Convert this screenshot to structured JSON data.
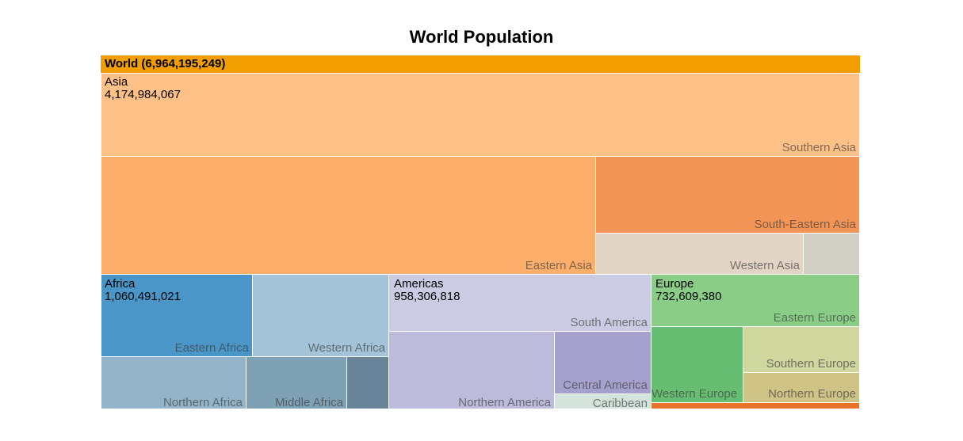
{
  "chart_data": {
    "type": "treemap",
    "title": "World Population",
    "root": {
      "name": "World",
      "value": "6,964,195,249"
    },
    "regions": [
      {
        "name": "Asia",
        "value": "4,174,984,067",
        "children": [
          {
            "name": "Southern Asia",
            "color": "#fdc086"
          },
          {
            "name": "Eastern Asia",
            "color": "#fdae6b"
          },
          {
            "name": "South-Eastern Asia",
            "color": "#f29556"
          },
          {
            "name": "Western Asia",
            "color": "#e3d5c6"
          },
          {
            "name": "",
            "color": "#cfcfc3"
          }
        ]
      },
      {
        "name": "Africa",
        "value": "1,060,491,021",
        "children": [
          {
            "name": "Eastern Africa",
            "color": "#4a96c8"
          },
          {
            "name": "Western Africa",
            "color": "#a3c4d8"
          },
          {
            "name": "Northern Africa",
            "color": "#93b4c9"
          },
          {
            "name": "Middle Africa",
            "color": "#7fa1b6"
          },
          {
            "name": "",
            "color": "#678499"
          }
        ]
      },
      {
        "name": "Americas",
        "value": "958,306,818",
        "children": [
          {
            "name": "South America",
            "color": "#cbcbe3"
          },
          {
            "name": "Northern America",
            "color": "#bdbbdb"
          },
          {
            "name": "Central America",
            "color": "#a6a0cc"
          },
          {
            "name": "Caribbean",
            "color": "#d4e3dc"
          }
        ]
      },
      {
        "name": "Europe",
        "value": "732,609,380",
        "children": [
          {
            "name": "Eastern Europe",
            "color": "#8acd86"
          },
          {
            "name": "Western Europe",
            "color": "#67be72"
          },
          {
            "name": "Southern Europe",
            "color": "#cfd79f"
          },
          {
            "name": "Northern Europe",
            "color": "#cfc486"
          }
        ]
      }
    ],
    "colors": {
      "root": "#f29e00",
      "oceania": "#e8742a"
    }
  }
}
